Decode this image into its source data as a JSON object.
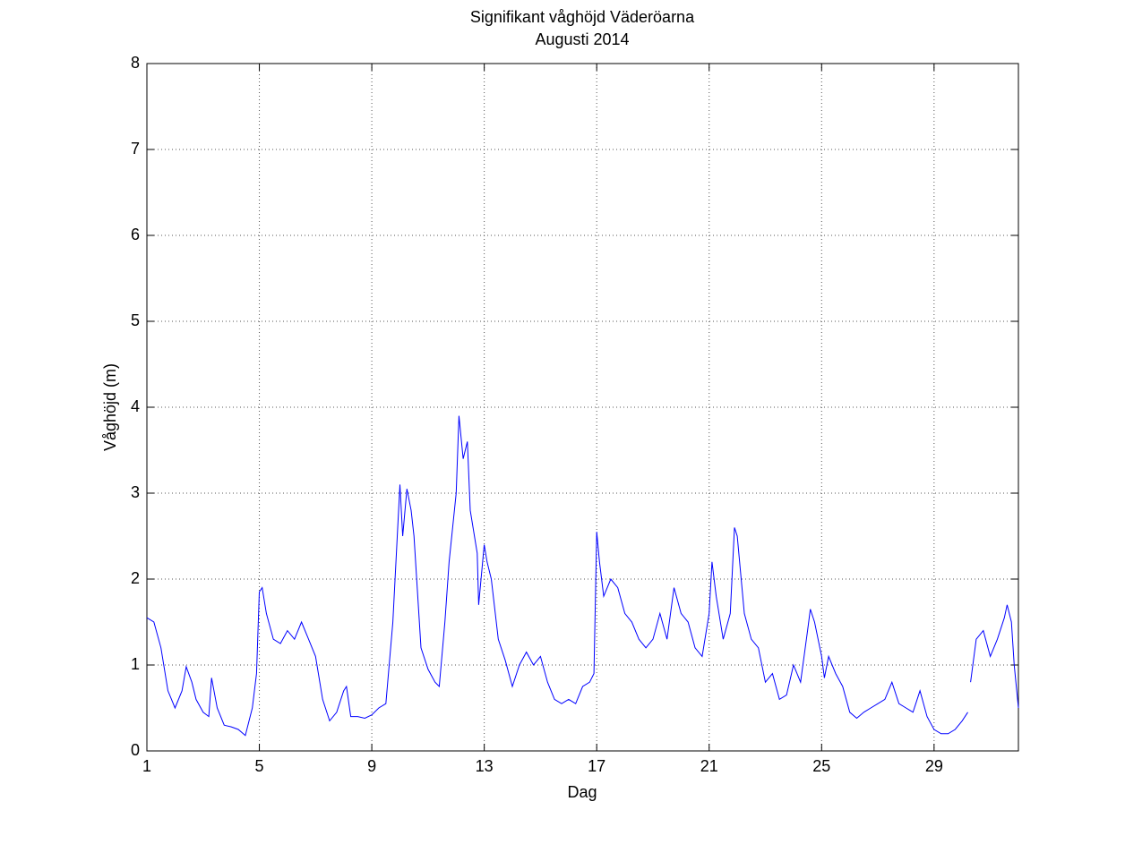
{
  "chart_data": {
    "type": "line",
    "title": "Signifikant våghöjd Väderöarna",
    "subtitle": "Augusti 2014",
    "x_label": "Dag",
    "y_label": "Våghöjd (m)",
    "xlim": [
      1,
      32
    ],
    "xticks": [
      1,
      5,
      9,
      13,
      17,
      21,
      25,
      29
    ],
    "ylim": [
      0,
      8
    ],
    "yticks": [
      0,
      1,
      2,
      3,
      4,
      5,
      6,
      7,
      8
    ],
    "grid": true,
    "x": [
      1.0,
      1.25,
      1.5,
      1.75,
      2.0,
      2.25,
      2.4,
      2.6,
      2.75,
      3.0,
      3.2,
      3.3,
      3.5,
      3.75,
      4.0,
      4.25,
      4.5,
      4.75,
      4.9,
      5.0,
      5.1,
      5.25,
      5.5,
      5.75,
      6.0,
      6.25,
      6.5,
      6.75,
      7.0,
      7.25,
      7.5,
      7.75,
      8.0,
      8.1,
      8.25,
      8.5,
      8.75,
      9.0,
      9.25,
      9.5,
      9.75,
      10.0,
      10.1,
      10.25,
      10.4,
      10.5,
      10.75,
      11.0,
      11.25,
      11.4,
      11.6,
      11.75,
      12.0,
      12.1,
      12.25,
      12.4,
      12.5,
      12.75,
      12.8,
      13.0,
      13.1,
      13.25,
      13.5,
      13.75,
      14.0,
      14.25,
      14.5,
      14.75,
      15.0,
      15.25,
      15.5,
      15.75,
      16.0,
      16.25,
      16.5,
      16.75,
      16.9,
      17.0,
      17.1,
      17.25,
      17.5,
      17.75,
      18.0,
      18.25,
      18.5,
      18.75,
      19.0,
      19.25,
      19.5,
      19.75,
      20.0,
      20.25,
      20.5,
      20.75,
      21.0,
      21.1,
      21.25,
      21.5,
      21.75,
      21.9,
      22.0,
      22.25,
      22.5,
      22.75,
      23.0,
      23.25,
      23.5,
      23.75,
      24.0,
      24.25,
      24.5,
      24.6,
      24.75,
      25.0,
      25.1,
      25.25,
      25.5,
      25.75,
      26.0,
      26.25,
      26.5,
      26.75,
      27.0,
      27.25,
      27.5,
      27.75,
      28.0,
      28.25,
      28.5,
      28.75,
      29.0,
      29.25,
      29.5,
      29.75,
      30.0,
      30.2,
      30.25,
      30.3,
      30.5,
      30.75,
      31.0,
      31.25,
      31.5,
      31.6,
      31.75,
      31.85,
      32.0
    ],
    "series": [
      {
        "name": "Våghöjd",
        "color": "#0000ff",
        "values": [
          1.55,
          1.5,
          1.2,
          0.7,
          0.5,
          0.7,
          0.98,
          0.8,
          0.6,
          0.45,
          0.4,
          0.85,
          0.5,
          0.3,
          0.28,
          0.25,
          0.18,
          0.5,
          0.9,
          1.85,
          1.9,
          1.6,
          1.3,
          1.25,
          1.4,
          1.3,
          1.5,
          1.3,
          1.1,
          0.6,
          0.35,
          0.45,
          0.7,
          0.75,
          0.4,
          0.4,
          0.38,
          0.42,
          0.5,
          0.55,
          1.5,
          3.1,
          2.5,
          3.05,
          2.8,
          2.5,
          1.2,
          0.95,
          0.8,
          0.75,
          1.5,
          2.2,
          3.0,
          3.9,
          3.4,
          3.6,
          2.8,
          2.3,
          1.7,
          2.4,
          2.2,
          2.0,
          1.3,
          1.05,
          0.75,
          1.0,
          1.15,
          1.0,
          1.1,
          0.8,
          0.6,
          0.55,
          0.6,
          0.55,
          0.75,
          0.8,
          0.9,
          2.55,
          2.2,
          1.8,
          2.0,
          1.9,
          1.6,
          1.5,
          1.3,
          1.2,
          1.3,
          1.6,
          1.3,
          1.9,
          1.6,
          1.5,
          1.2,
          1.1,
          1.6,
          2.2,
          1.8,
          1.3,
          1.6,
          2.6,
          2.5,
          1.6,
          1.3,
          1.2,
          0.8,
          0.9,
          0.6,
          0.65,
          1.0,
          0.8,
          1.4,
          1.65,
          1.5,
          1.1,
          0.85,
          1.1,
          0.9,
          0.75,
          0.45,
          0.38,
          0.45,
          0.5,
          0.55,
          0.6,
          0.8,
          0.55,
          0.5,
          0.45,
          0.7,
          0.4,
          0.25,
          0.2,
          0.2,
          0.25,
          0.35,
          0.45,
          null,
          0.8,
          1.3,
          1.4,
          1.1,
          1.3,
          1.55,
          1.7,
          1.5,
          1.0,
          0.5
        ]
      }
    ]
  }
}
